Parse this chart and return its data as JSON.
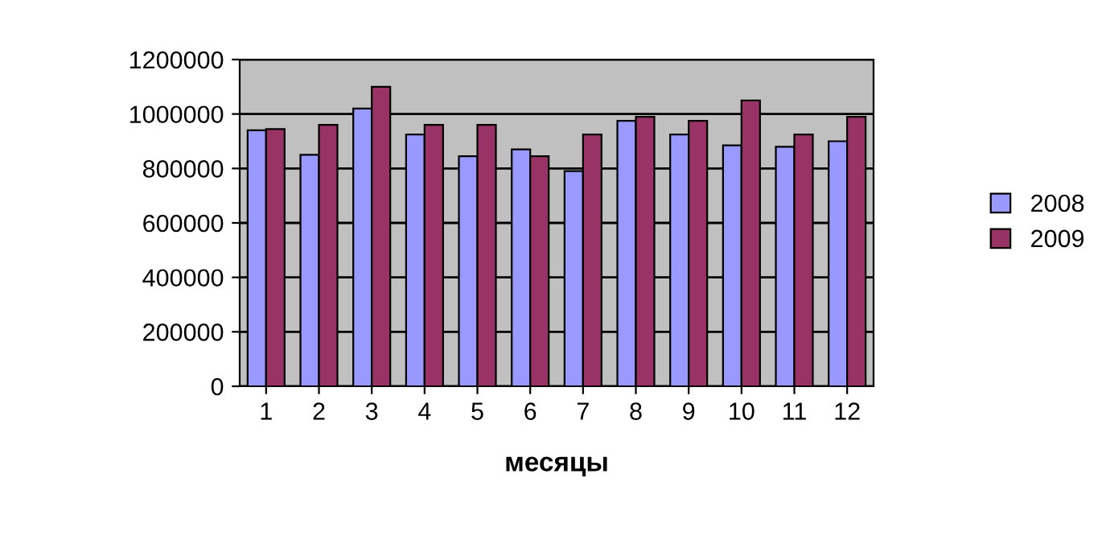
{
  "chart_data": {
    "type": "bar",
    "xlabel": "месяцы",
    "categories": [
      "1",
      "2",
      "3",
      "4",
      "5",
      "6",
      "7",
      "8",
      "9",
      "10",
      "11",
      "12"
    ],
    "series": [
      {
        "name": "2008",
        "color": "#9999ff",
        "values": [
          940000,
          850000,
          1020000,
          925000,
          845000,
          870000,
          790000,
          975000,
          925000,
          885000,
          880000,
          900000
        ]
      },
      {
        "name": "2009",
        "color": "#993366",
        "values": [
          945000,
          960000,
          1100000,
          960000,
          960000,
          845000,
          925000,
          990000,
          975000,
          1050000,
          925000,
          990000
        ]
      }
    ],
    "ylim": [
      0,
      1200000
    ],
    "yticks": [
      0,
      200000,
      400000,
      600000,
      800000,
      1000000,
      1200000
    ],
    "grid": "y",
    "legend": "right"
  }
}
